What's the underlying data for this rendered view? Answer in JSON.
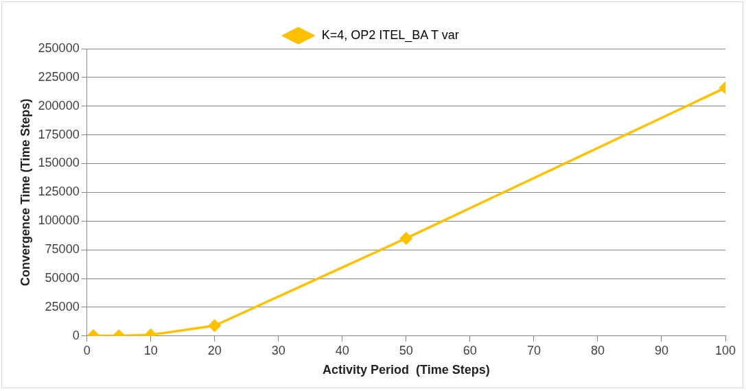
{
  "chart_data": {
    "type": "line",
    "xlabel": "Activity Period  (Time Steps)",
    "ylabel": "Convergence Time (Time Steps)",
    "x": [
      1,
      5,
      10,
      20,
      50,
      100
    ],
    "series": [
      {
        "name": "K=4, OP2 ITEL_BA T var",
        "color": "#ffc000",
        "values": [
          300,
          200,
          1000,
          9000,
          85000,
          216000
        ]
      }
    ],
    "xlim": [
      0,
      100
    ],
    "xticks": [
      0,
      10,
      20,
      30,
      40,
      50,
      60,
      70,
      80,
      90,
      100
    ],
    "ylim": [
      0,
      250000
    ],
    "yticks": [
      0,
      25000,
      50000,
      75000,
      100000,
      125000,
      150000,
      175000,
      200000,
      225000,
      250000
    ],
    "grid": "y",
    "legend": "top",
    "marker": "diamond",
    "line_style": "solid"
  }
}
